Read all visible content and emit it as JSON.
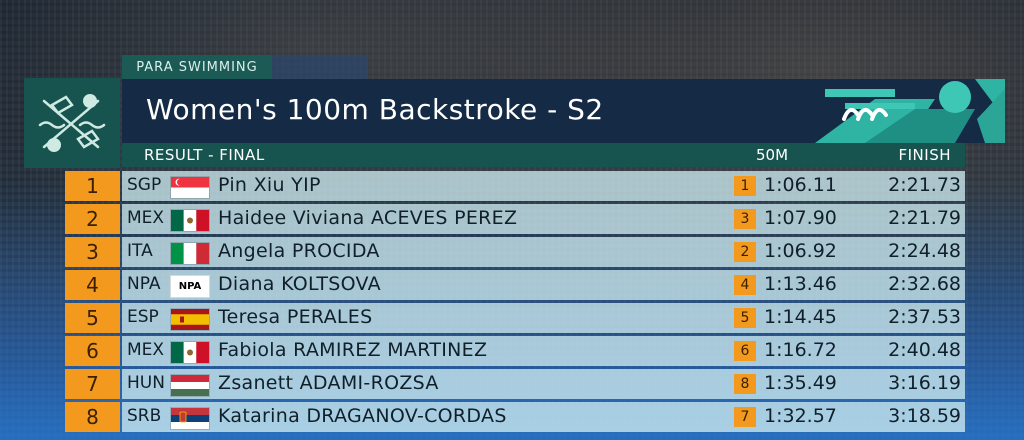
{
  "event": {
    "sport": "PARA SWIMMING",
    "title": "Women's 100m Backstroke - S2"
  },
  "header": {
    "result_label": "RESULT - FINAL",
    "split_label": "50M",
    "finish_label": "FINISH"
  },
  "colors": {
    "accent_orange": "#f39a1e",
    "teal": "#17544f",
    "navy": "#142a45"
  },
  "results": [
    {
      "rank": "1",
      "noc": "SGP",
      "flag": "flag-singapore",
      "name": "Pin Xiu YIP",
      "split_rank": "1",
      "split": "1:06.11",
      "finish": "2:21.73"
    },
    {
      "rank": "2",
      "noc": "MEX",
      "flag": "flag-mexico",
      "name": "Haidee Viviana ACEVES PEREZ",
      "split_rank": "3",
      "split": "1:07.90",
      "finish": "2:21.79"
    },
    {
      "rank": "3",
      "noc": "ITA",
      "flag": "flag-italy",
      "name": "Angela PROCIDA",
      "split_rank": "2",
      "split": "1:06.92",
      "finish": "2:24.48"
    },
    {
      "rank": "4",
      "noc": "NPA",
      "flag": "flag-npa",
      "flag_text": "NPA",
      "name": "Diana KOLTSOVA",
      "split_rank": "4",
      "split": "1:13.46",
      "finish": "2:32.68"
    },
    {
      "rank": "5",
      "noc": "ESP",
      "flag": "flag-spain",
      "name": "Teresa PERALES",
      "split_rank": "5",
      "split": "1:14.45",
      "finish": "2:37.53"
    },
    {
      "rank": "6",
      "noc": "MEX",
      "flag": "flag-mexico",
      "name": "Fabiola RAMIREZ MARTINEZ",
      "split_rank": "6",
      "split": "1:16.72",
      "finish": "2:40.48"
    },
    {
      "rank": "7",
      "noc": "HUN",
      "flag": "flag-hungary",
      "name": "Zsanett ADAMI-ROZSA",
      "split_rank": "8",
      "split": "1:35.49",
      "finish": "3:16.19"
    },
    {
      "rank": "8",
      "noc": "SRB",
      "flag": "flag-serbia",
      "name": "Katarina DRAGANOV-CORDAS",
      "split_rank": "7",
      "split": "1:32.57",
      "finish": "3:18.59"
    }
  ]
}
